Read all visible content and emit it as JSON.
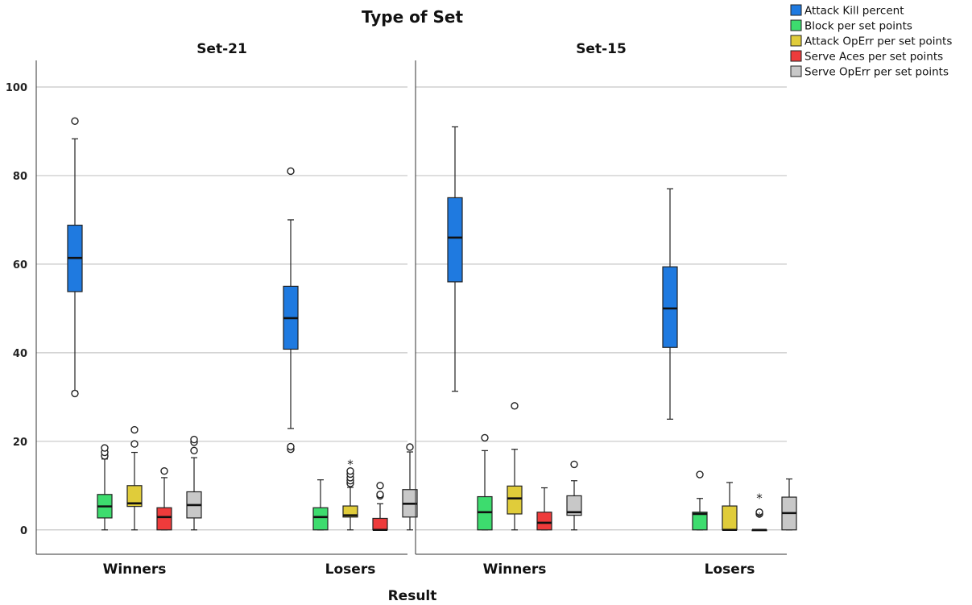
{
  "chart_data": {
    "type": "boxplot",
    "title": "Type of Set",
    "xlabel": "Result",
    "ylim": [
      -5.5,
      106
    ],
    "y_ticks": [
      0,
      20,
      40,
      60,
      80,
      100
    ],
    "grid": "horizontal",
    "legend_position": "top-right",
    "categories": [
      "Winners",
      "Losers"
    ],
    "series": [
      {
        "name": "Attack Kill percent",
        "color": "#1f7ae0"
      },
      {
        "name": "Block per set points",
        "color": "#3ddc6e"
      },
      {
        "name": "Attack OpErr per set points",
        "color": "#e0cc3a"
      },
      {
        "name": "Serve Aces per set points",
        "color": "#ee3b3b"
      },
      {
        "name": "Serve OpErr per set points",
        "color": "#c8c8c8"
      }
    ],
    "panels": [
      {
        "name": "Set-21",
        "groups": [
          {
            "category": "Winners",
            "boxes": [
              {
                "whisker_low": 31.3,
                "q1": 53.8,
                "median": 61.4,
                "q3": 68.8,
                "whisker_high": 88.3,
                "outliers": [
                  30.8,
                  92.3
                ],
                "extremes": []
              },
              {
                "whisker_low": 0,
                "q1": 2.7,
                "median": 5.3,
                "q3": 8.0,
                "whisker_high": 16.0,
                "outliers": [
                  16.7,
                  17.5,
                  18.5
                ],
                "extremes": []
              },
              {
                "whisker_low": 0,
                "q1": 5.3,
                "median": 6.0,
                "q3": 10.0,
                "whisker_high": 17.5,
                "outliers": [
                  19.4,
                  22.6
                ],
                "extremes": []
              },
              {
                "whisker_low": 0,
                "q1": 0,
                "median": 2.9,
                "q3": 5.0,
                "whisker_high": 11.8,
                "outliers": [
                  13.3
                ],
                "extremes": []
              },
              {
                "whisker_low": 0,
                "q1": 2.7,
                "median": 5.6,
                "q3": 8.6,
                "whisker_high": 16.3,
                "outliers": [
                  17.9,
                  19.8,
                  20.4
                ],
                "extremes": []
              }
            ]
          },
          {
            "category": "Losers",
            "boxes": [
              {
                "whisker_low": 22.9,
                "q1": 40.8,
                "median": 47.8,
                "q3": 55.0,
                "whisker_high": 70.0,
                "outliers": [
                  18.2,
                  18.8,
                  81.0
                ],
                "extremes": []
              },
              {
                "whisker_low": 0,
                "q1": 0,
                "median": 2.9,
                "q3": 5.0,
                "whisker_high": 11.3,
                "outliers": [],
                "extremes": []
              },
              {
                "whisker_low": 0,
                "q1": 2.9,
                "median": 3.3,
                "q3": 5.4,
                "whisker_high": 9.6,
                "outliers": [
                  10.5,
                  11.1,
                  11.8,
                  12.6,
                  13.3
                ],
                "extremes": [
                  14.8
                ]
              },
              {
                "whisker_low": 0,
                "q1": 0,
                "median": 0,
                "q3": 2.6,
                "whisker_high": 5.9,
                "outliers": [
                  7.7,
                  8.0,
                  10.0
                ],
                "extremes": []
              },
              {
                "whisker_low": 0,
                "q1": 2.9,
                "median": 5.9,
                "q3": 9.1,
                "whisker_high": 17.6,
                "outliers": [
                  18.7
                ],
                "extremes": []
              }
            ]
          }
        ]
      },
      {
        "name": "Set-15",
        "groups": [
          {
            "category": "Winners",
            "boxes": [
              {
                "whisker_low": 31.3,
                "q1": 56.0,
                "median": 66.0,
                "q3": 75.0,
                "whisker_high": 91.0,
                "outliers": [],
                "extremes": []
              },
              {
                "whisker_low": 0,
                "q1": 0,
                "median": 4.0,
                "q3": 7.5,
                "whisker_high": 17.9,
                "outliers": [
                  20.8
                ],
                "extremes": []
              },
              {
                "whisker_low": 0,
                "q1": 3.6,
                "median": 7.1,
                "q3": 9.9,
                "whisker_high": 18.2,
                "outliers": [
                  28.0
                ],
                "extremes": []
              },
              {
                "whisker_low": 0,
                "q1": 0,
                "median": 1.6,
                "q3": 4.0,
                "whisker_high": 9.5,
                "outliers": [],
                "extremes": []
              },
              {
                "whisker_low": 0,
                "q1": 3.3,
                "median": 4.0,
                "q3": 7.7,
                "whisker_high": 11.1,
                "outliers": [
                  14.8
                ],
                "extremes": []
              }
            ]
          },
          {
            "category": "Losers",
            "boxes": [
              {
                "whisker_low": 25.0,
                "q1": 41.2,
                "median": 50.0,
                "q3": 59.4,
                "whisker_high": 77.0,
                "outliers": [],
                "extremes": []
              },
              {
                "whisker_low": 0,
                "q1": 0,
                "median": 3.6,
                "q3": 4.0,
                "whisker_high": 7.1,
                "outliers": [
                  12.5
                ],
                "extremes": []
              },
              {
                "whisker_low": 0,
                "q1": 0,
                "median": 0,
                "q3": 5.4,
                "whisker_high": 10.7,
                "outliers": [],
                "extremes": []
              },
              {
                "whisker_low": 0,
                "q1": 0,
                "median": 0,
                "q3": 0,
                "whisker_high": 0,
                "outliers": [
                  3.6,
                  4.0
                ],
                "extremes": [
                  2.9,
                  7.1
                ]
              },
              {
                "whisker_low": 0,
                "q1": 0,
                "median": 3.8,
                "q3": 7.4,
                "whisker_high": 11.5,
                "outliers": [],
                "extremes": []
              }
            ]
          }
        ]
      }
    ]
  }
}
